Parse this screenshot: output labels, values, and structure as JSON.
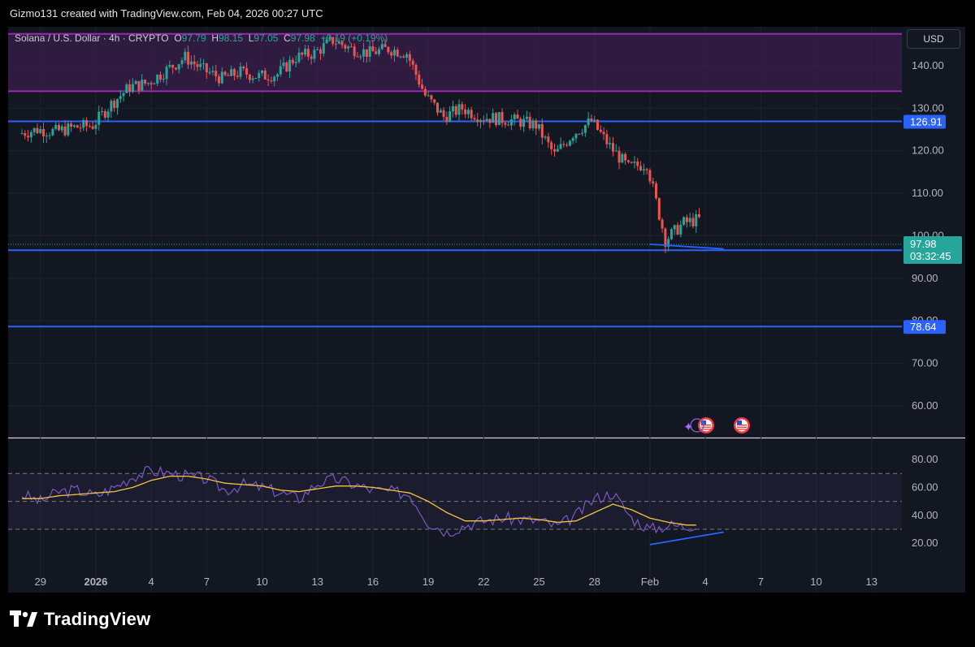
{
  "header": {
    "attribution": "Gizmo131 created with TradingView.com, Feb 04, 2026 00:27 UTC"
  },
  "legend": {
    "symbol": "Solana / U.S. Dollar · 4h · CRYPTO",
    "o_label": "O",
    "o": "97.79",
    "h_label": "H",
    "h": "98.15",
    "l_label": "L",
    "l": "97.05",
    "c_label": "C",
    "c": "97.98",
    "change": "+0.19 (+0.19%)"
  },
  "currency": "USD",
  "logo": {
    "wordmark": "TradingView"
  },
  "colors": {
    "background": "#131722",
    "up": "#26a69a",
    "down": "#ef5350",
    "level_line": "#2962ff",
    "zone_border": "#9c27b0",
    "zone_fill": "#3a1d4a",
    "rsi": "#7e57c2",
    "rsi_ma": "#f5c542"
  },
  "chart_data": [
    {
      "type": "candlestick",
      "title": "Solana / U.S. Dollar · 4h · CRYPTO",
      "interval": "4h",
      "ylim": [
        53,
        149
      ],
      "y_ticks": [
        "60.00",
        "70.00",
        "80.00",
        "90.00",
        "100.00",
        "110.00",
        "120.00",
        "130.00",
        "140.00"
      ],
      "x_ticks": [
        "29",
        "2026",
        "4",
        "7",
        "10",
        "13",
        "16",
        "19",
        "22",
        "25",
        "28",
        "Feb",
        "4",
        "7",
        "10",
        "13"
      ],
      "grid": true,
      "last_price": {
        "value": "97.98",
        "countdown": "03:32:45"
      },
      "horizontal_levels": [
        {
          "value": 126.91,
          "label": "126.91"
        },
        {
          "value": 96.59,
          "label": "96.59"
        },
        {
          "value": 78.64,
          "label": "78.64"
        }
      ],
      "zone": {
        "from": 134,
        "to": 147.5
      },
      "trendline": {
        "from": [
          1,
          97.5
        ],
        "to": [
          4,
          96.9
        ]
      },
      "close_path": [
        [
          "Dec 28",
          124
        ],
        [
          "Dec 29",
          125
        ],
        [
          "Dec 30",
          124.5
        ],
        [
          "Dec 31",
          125.5
        ],
        [
          "Jan 1",
          126
        ],
        [
          "Jan 2",
          131
        ],
        [
          "Jan 3",
          135
        ],
        [
          "Jan 4",
          136
        ],
        [
          "Jan 5",
          139
        ],
        [
          "Jan 6",
          142
        ],
        [
          "Jan 7",
          139
        ],
        [
          "Jan 8",
          137
        ],
        [
          "Jan 9",
          138.5
        ],
        [
          "Jan 10",
          137.5
        ],
        [
          "Jan 11",
          138
        ],
        [
          "Jan 12",
          142
        ],
        [
          "Jan 13",
          143
        ],
        [
          "Jan 14",
          146
        ],
        [
          "Jan 15",
          144
        ],
        [
          "Jan 16",
          143
        ],
        [
          "Jan 17",
          144
        ],
        [
          "Jan 18",
          143
        ],
        [
          "Jan 19",
          133
        ],
        [
          "Jan 20",
          128
        ],
        [
          "Jan 21",
          130
        ],
        [
          "Jan 22",
          128
        ],
        [
          "Jan 23",
          127.5
        ],
        [
          "Jan 24",
          127
        ],
        [
          "Jan 25",
          126
        ],
        [
          "Jan 26",
          119
        ],
        [
          "Jan 27",
          124
        ],
        [
          "Jan 28",
          127
        ],
        [
          "Jan 29",
          121
        ],
        [
          "Jan 30",
          116
        ],
        [
          "Jan 31",
          117
        ],
        [
          "Feb 1",
          99
        ],
        [
          "Feb 2",
          103
        ],
        [
          "Feb 3",
          104
        ],
        [
          "Feb 4",
          97.98
        ]
      ]
    },
    {
      "type": "line",
      "title": "RSI",
      "ylim": [
        10,
        92
      ],
      "y_ticks": [
        "20.00",
        "40.00",
        "60.00",
        "80.00"
      ],
      "bands": [
        30,
        50,
        70
      ],
      "series": [
        {
          "values": [
            55,
            50,
            57,
            58,
            54,
            60,
            68,
            72,
            70,
            68,
            66,
            58,
            62,
            60,
            56,
            52,
            63,
            66,
            62,
            58,
            57,
            55,
            35,
            28,
            33,
            36,
            38,
            37,
            36,
            32,
            40,
            52,
            56,
            38,
            30,
            33,
            32,
            36,
            36,
            32
          ]
        },
        {
          "values": [
            52,
            52,
            54,
            55,
            56,
            57,
            60,
            65,
            68,
            68,
            66,
            63,
            62,
            61,
            58,
            57,
            59,
            61,
            61,
            60,
            58,
            56,
            50,
            42,
            36,
            36,
            37,
            38,
            37,
            35,
            36,
            42,
            48,
            44,
            38,
            35,
            33,
            33,
            34,
            33
          ]
        }
      ],
      "trendline": {
        "from": [
          1,
          19
        ],
        "to": [
          4,
          28
        ]
      }
    }
  ]
}
